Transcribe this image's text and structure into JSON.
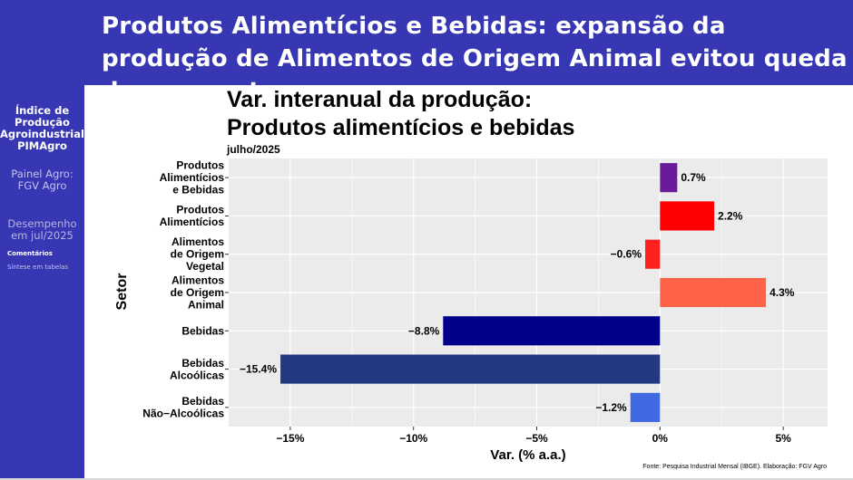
{
  "header": {
    "title": "Produtos Alimentícios e Bebidas: expansão da produção de Alimentos de Origem Animal evitou queda do segmento"
  },
  "sidebar": {
    "items": [
      {
        "label": "Índice de Produção Agroindustrial PIMAgro"
      },
      {
        "label": "Painel Agro: FGV Agro"
      },
      {
        "label": "Desempenho em jul/2025"
      }
    ],
    "subitems": [
      {
        "label": "Comentários"
      },
      {
        "label": "Síntese em tabelas"
      }
    ]
  },
  "colors": {
    "theme": "#3737b4",
    "panel": "#ebebeb",
    "grid": "#ffffff"
  },
  "chart_data": {
    "type": "bar",
    "orientation": "horizontal",
    "title_lines": [
      "Var. interanual da produção:",
      "Produtos alimentícios e bebidas"
    ],
    "subtitle": "julho/2025",
    "xlabel": "Var. (% a.a.)",
    "ylabel": "Setor",
    "xlim": [
      -17.5,
      6.8
    ],
    "xticks": [
      -15,
      -10,
      -5,
      0,
      5
    ],
    "xtick_labels": [
      "−15%",
      "−10%",
      "−5%",
      "0%",
      "5%"
    ],
    "grid": true,
    "legend": "none",
    "categories": [
      [
        "Produtos",
        "Alimentícios",
        "e Bebidas"
      ],
      [
        "Produtos",
        "Alimentícios"
      ],
      [
        "Alimentos",
        "de Origem",
        "Vegetal"
      ],
      [
        "Alimentos",
        "de Origem",
        "Animal"
      ],
      [
        "Bebidas"
      ],
      [
        "Bebidas",
        "Alcoólicas"
      ],
      [
        "Bebidas",
        "Não−Alcoólicas"
      ]
    ],
    "values": [
      0.7,
      2.2,
      -0.6,
      4.3,
      -8.8,
      -15.4,
      -1.2
    ],
    "value_labels": [
      "0.7%",
      "2.2%",
      "−0.6%",
      "4.3%",
      "−8.8%",
      "−15.4%",
      "−1.2%"
    ],
    "bar_colors": [
      "#6a1b9a",
      "#ff0000",
      "#ff2020",
      "#ff6347",
      "#00008b",
      "#233a82",
      "#4169e1"
    ],
    "source": "Fonte: Pesquisa Industrial Mensal (IBGE). Elaboração: FGV Agro"
  }
}
